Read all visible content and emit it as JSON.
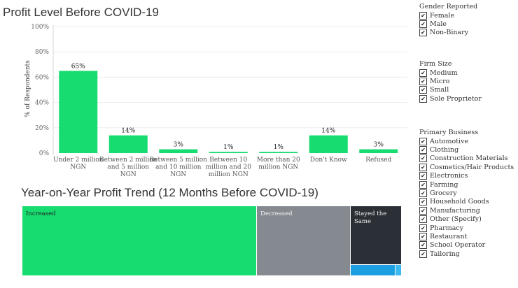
{
  "chart_data": [
    {
      "type": "bar",
      "title": "Profit Level Before COVID-19",
      "ylabel": "% of Respondents",
      "ylim": [
        0,
        100
      ],
      "yticks": [
        "0%",
        "20%",
        "40%",
        "60%",
        "80%",
        "100%"
      ],
      "categories": [
        [
          "Under 2 million",
          "NGN"
        ],
        [
          "Between 2 million",
          "and 5 million",
          "NGN"
        ],
        [
          "Between 5 million",
          "and 10 million",
          "NGN"
        ],
        [
          "Between 10",
          "million and 20",
          "million NGN"
        ],
        [
          "More than 20",
          "million NGN"
        ],
        [
          "Don't Know"
        ],
        [
          "Refused"
        ]
      ],
      "values": [
        65,
        14,
        3,
        1,
        1,
        14,
        3
      ],
      "value_labels": [
        "65%",
        "14%",
        "3%",
        "1%",
        "1%",
        "14%",
        "3%"
      ],
      "bar_color": "#17dc6f"
    },
    {
      "type": "treemap",
      "title": "Year-on-Year Profit Trend (12 Months Before COVID-19)",
      "items": [
        {
          "label": "Increased",
          "color": "#17dc6f"
        },
        {
          "label": "Decreased",
          "color": "#858a91"
        },
        {
          "label": "Stayed the Same",
          "color": "#2b2f36"
        },
        {
          "label": "",
          "color": "#1b9fe0"
        },
        {
          "label": "",
          "color": "#3bb8f0"
        }
      ]
    }
  ],
  "filters": [
    {
      "title": "Gender Reported",
      "items": [
        "Female",
        "Male",
        "Non-Binary"
      ]
    },
    {
      "title": "Firm Size",
      "items": [
        "Medium",
        "Micro",
        "Small",
        "Sole Proprietor"
      ]
    },
    {
      "title": "Primary Business",
      "items": [
        "Automotive",
        "Clothing",
        "Construction Materials",
        "Cosmetics/Hair Products",
        "Electronics",
        "Farming",
        "Grocery",
        "Household Goods",
        "Manufacturing",
        "Other (Specify)",
        "Pharmacy",
        "Restaurant",
        "School Operator",
        "Tailoring"
      ]
    }
  ],
  "check_glyph": "✔"
}
